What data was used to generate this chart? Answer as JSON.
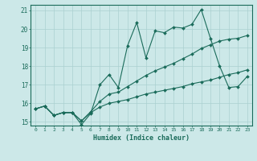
{
  "title": "",
  "xlabel": "Humidex (Indice chaleur)",
  "background_color": "#cce8e8",
  "grid_color": "#aad0d0",
  "line_color": "#1a6b5a",
  "xlim": [
    -0.5,
    23.5
  ],
  "ylim": [
    14.8,
    21.3
  ],
  "yticks": [
    15,
    16,
    17,
    18,
    19,
    20,
    21
  ],
  "xticks": [
    0,
    1,
    2,
    3,
    4,
    5,
    6,
    7,
    8,
    9,
    10,
    11,
    12,
    13,
    14,
    15,
    16,
    17,
    18,
    19,
    20,
    21,
    22,
    23
  ],
  "line1_x": [
    0,
    1,
    2,
    3,
    4,
    5,
    6,
    7,
    8,
    9,
    10,
    11,
    12,
    13,
    14,
    15,
    16,
    17,
    18,
    19,
    20,
    21,
    22,
    23
  ],
  "line1_y": [
    15.7,
    15.85,
    15.35,
    15.5,
    15.5,
    14.85,
    15.45,
    17.0,
    17.55,
    16.85,
    19.1,
    20.35,
    18.45,
    19.9,
    19.8,
    20.1,
    20.05,
    20.25,
    21.05,
    19.5,
    18.0,
    16.85,
    16.9,
    17.45
  ],
  "line2_x": [
    0,
    1,
    2,
    3,
    4,
    5,
    6,
    7,
    8,
    9,
    10,
    11,
    12,
    13,
    14,
    15,
    16,
    17,
    18,
    19,
    20,
    21,
    22,
    23
  ],
  "line2_y": [
    15.7,
    15.85,
    15.35,
    15.5,
    15.5,
    15.05,
    15.55,
    16.1,
    16.5,
    16.6,
    16.9,
    17.2,
    17.5,
    17.75,
    17.95,
    18.15,
    18.4,
    18.65,
    18.95,
    19.15,
    19.35,
    19.45,
    19.5,
    19.65
  ],
  "line3_x": [
    0,
    1,
    2,
    3,
    4,
    5,
    6,
    7,
    8,
    9,
    10,
    11,
    12,
    13,
    14,
    15,
    16,
    17,
    18,
    19,
    20,
    21,
    22,
    23
  ],
  "line3_y": [
    15.7,
    15.85,
    15.35,
    15.5,
    15.5,
    15.05,
    15.5,
    15.8,
    16.0,
    16.1,
    16.2,
    16.35,
    16.5,
    16.6,
    16.7,
    16.8,
    16.9,
    17.05,
    17.15,
    17.25,
    17.4,
    17.55,
    17.65,
    17.8
  ]
}
